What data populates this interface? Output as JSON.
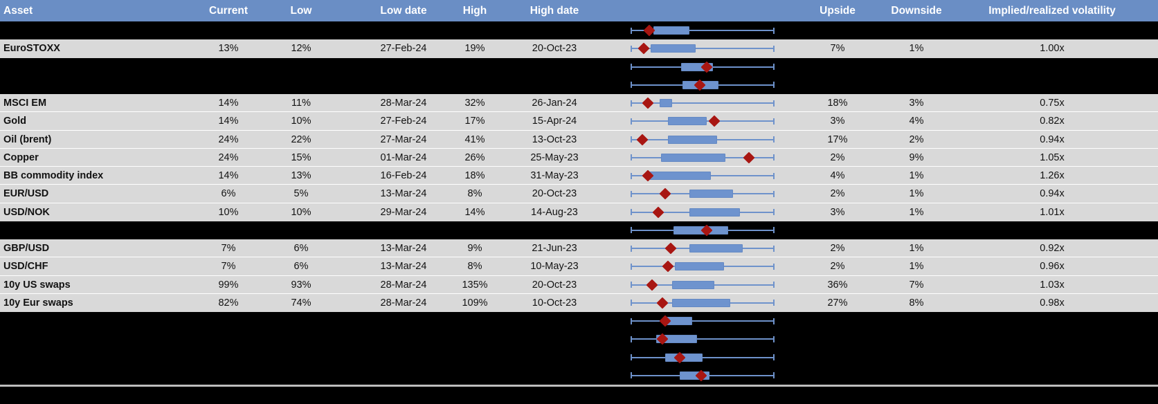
{
  "header": {
    "asset": "Asset",
    "current": "Current",
    "low": "Low",
    "low_date": "Low date",
    "high": "High",
    "high_date": "High date",
    "upside": "Upside",
    "downside": "Downside",
    "vol": "Implied/realized volatility"
  },
  "colors": {
    "header_bg": "#6a8ec5",
    "row_bg": "#d9d9d9",
    "redacted_bg": "#000000",
    "box_fill": "#6e93ce",
    "whisker": "#6e92cb",
    "marker": "#a81612",
    "separator": "#bdbdbd"
  },
  "rows": [
    {
      "type": "redacted"
    },
    {
      "type": "data",
      "asset": "EuroSTOXX",
      "current": "13%",
      "low": "12%",
      "low_date": "27-Feb-24",
      "high": "19%",
      "high_date": "20-Oct-23",
      "upside": "7%",
      "downside": "1%",
      "vol": "1.00x"
    },
    {
      "type": "redacted"
    },
    {
      "type": "redacted"
    },
    {
      "type": "data",
      "asset": "MSCI EM",
      "current": "14%",
      "low": "11%",
      "low_date": "28-Mar-24",
      "high": "32%",
      "high_date": "26-Jan-24",
      "upside": "18%",
      "downside": "3%",
      "vol": "0.75x"
    },
    {
      "type": "data",
      "asset": "Gold",
      "current": "14%",
      "low": "10%",
      "low_date": "27-Feb-24",
      "high": "17%",
      "high_date": "15-Apr-24",
      "upside": "3%",
      "downside": "4%",
      "vol": "0.82x"
    },
    {
      "type": "data",
      "asset": "Oil (brent)",
      "current": "24%",
      "low": "22%",
      "low_date": "27-Mar-24",
      "high": "41%",
      "high_date": "13-Oct-23",
      "upside": "17%",
      "downside": "2%",
      "vol": "0.94x"
    },
    {
      "type": "data",
      "asset": "Copper",
      "current": "24%",
      "low": "15%",
      "low_date": "01-Mar-24",
      "high": "26%",
      "high_date": "25-May-23",
      "upside": "2%",
      "downside": "9%",
      "vol": "1.05x"
    },
    {
      "type": "data",
      "asset": "BB commodity index",
      "current": "14%",
      "low": "13%",
      "low_date": "16-Feb-24",
      "high": "18%",
      "high_date": "31-May-23",
      "upside": "4%",
      "downside": "1%",
      "vol": "1.26x"
    },
    {
      "type": "data",
      "asset": "EUR/USD",
      "current": "6%",
      "low": "5%",
      "low_date": "13-Mar-24",
      "high": "8%",
      "high_date": "20-Oct-23",
      "upside": "2%",
      "downside": "1%",
      "vol": "0.94x"
    },
    {
      "type": "data",
      "asset": "USD/NOK",
      "current": "10%",
      "low": "10%",
      "low_date": "29-Mar-24",
      "high": "14%",
      "high_date": "14-Aug-23",
      "upside": "3%",
      "downside": "1%",
      "vol": "1.01x"
    },
    {
      "type": "redacted"
    },
    {
      "type": "data",
      "asset": "GBP/USD",
      "current": "7%",
      "low": "6%",
      "low_date": "13-Mar-24",
      "high": "9%",
      "high_date": "21-Jun-23",
      "upside": "2%",
      "downside": "1%",
      "vol": "0.92x"
    },
    {
      "type": "data",
      "asset": "USD/CHF",
      "current": "7%",
      "low": "6%",
      "low_date": "13-Mar-24",
      "high": "8%",
      "high_date": "10-May-23",
      "upside": "2%",
      "downside": "1%",
      "vol": "0.96x"
    },
    {
      "type": "data",
      "asset": "10y US swaps",
      "current": "99%",
      "low": "93%",
      "low_date": "28-Mar-24",
      "high": "135%",
      "high_date": "20-Oct-23",
      "upside": "36%",
      "downside": "7%",
      "vol": "1.03x"
    },
    {
      "type": "data",
      "asset": "10y Eur swaps",
      "current": "82%",
      "low": "74%",
      "low_date": "28-Mar-24",
      "high": "109%",
      "high_date": "10-Oct-23",
      "upside": "27%",
      "downside": "8%",
      "vol": "0.98x"
    },
    {
      "type": "redacted"
    },
    {
      "type": "redacted"
    },
    {
      "type": "redacted"
    },
    {
      "type": "redacted"
    }
  ],
  "chart_data": {
    "type": "boxplot",
    "orientation": "horizontal",
    "x_range_pct": [
      0,
      100
    ],
    "whiskers_pct": [
      0,
      100
    ],
    "legend": "blue box = interquartile range of implied volatility over period, whiskers = low/high range, red diamond = current level (normalized 0-100%)",
    "series": [
      {
        "label": "",
        "q1": 16,
        "q3": 41,
        "marker": 13
      },
      {
        "label": "EuroSTOXX",
        "q1": 14,
        "q3": 45,
        "marker": 9
      },
      {
        "label": "",
        "q1": 35,
        "q3": 57,
        "marker": 53
      },
      {
        "label": "",
        "q1": 36,
        "q3": 61,
        "marker": 48
      },
      {
        "label": "MSCI EM",
        "q1": 20,
        "q3": 29,
        "marker": 12
      },
      {
        "label": "Gold",
        "q1": 26,
        "q3": 53,
        "marker": 58
      },
      {
        "label": "Oil (brent)",
        "q1": 26,
        "q3": 60,
        "marker": 8
      },
      {
        "label": "Copper",
        "q1": 21,
        "q3": 66,
        "marker": 82
      },
      {
        "label": "BB commodity index",
        "q1": 13,
        "q3": 56,
        "marker": 12
      },
      {
        "label": "EUR/USD",
        "q1": 41,
        "q3": 71,
        "marker": 24
      },
      {
        "label": "USD/NOK",
        "q1": 41,
        "q3": 76,
        "marker": 19
      },
      {
        "label": "",
        "q1": 30,
        "q3": 68,
        "marker": 53
      },
      {
        "label": "GBP/USD",
        "q1": 41,
        "q3": 78,
        "marker": 28
      },
      {
        "label": "USD/CHF",
        "q1": 31,
        "q3": 65,
        "marker": 26
      },
      {
        "label": "10y US swaps",
        "q1": 29,
        "q3": 58,
        "marker": 15
      },
      {
        "label": "10y Eur swaps",
        "q1": 29,
        "q3": 69,
        "marker": 22
      },
      {
        "label": "",
        "q1": 25,
        "q3": 43,
        "marker": 24
      },
      {
        "label": "",
        "q1": 18,
        "q3": 46,
        "marker": 22
      },
      {
        "label": "",
        "q1": 24,
        "q3": 50,
        "marker": 34
      },
      {
        "label": "",
        "q1": 34,
        "q3": 55,
        "marker": 49
      }
    ]
  }
}
